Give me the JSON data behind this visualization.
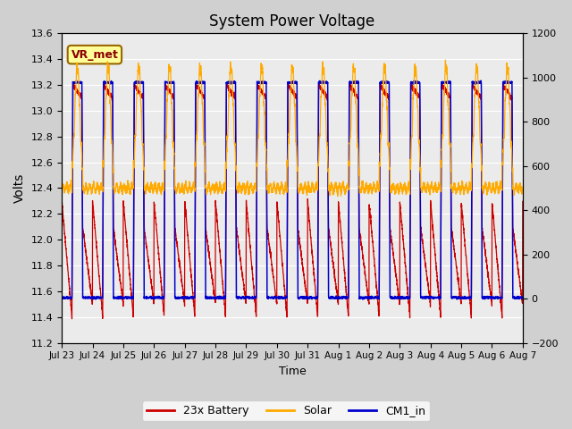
{
  "title": "System Power Voltage",
  "xlabel": "Time",
  "ylabel": "Volts",
  "ylim_left": [
    11.2,
    13.6
  ],
  "ylim_right": [
    -200,
    1200
  ],
  "yticks_left": [
    11.2,
    11.4,
    11.6,
    11.8,
    12.0,
    12.2,
    12.4,
    12.6,
    12.8,
    13.0,
    13.2,
    13.4,
    13.6
  ],
  "yticks_right": [
    -200,
    0,
    200,
    400,
    600,
    800,
    1000,
    1200
  ],
  "xtick_labels": [
    "Jul 23",
    "Jul 24",
    "Jul 25",
    "Jul 26",
    "Jul 27",
    "Jul 28",
    "Jul 29",
    "Jul 30",
    "Jul 31",
    "Aug 1",
    "Aug 2",
    "Aug 3",
    "Aug 4",
    "Aug 5",
    "Aug 6",
    "Aug 7"
  ],
  "n_days": 15,
  "battery_color": "#cc0000",
  "solar_color": "#ffaa00",
  "cm1_color": "#0000cc",
  "plot_bg_color": "#ebebeb",
  "grid_color": "#ffffff",
  "legend_labels": [
    "23x Battery",
    "Solar",
    "CM1_in"
  ],
  "annotation_text": "VR_met",
  "annotation_bg": "#ffff99",
  "annotation_border": "#996600"
}
